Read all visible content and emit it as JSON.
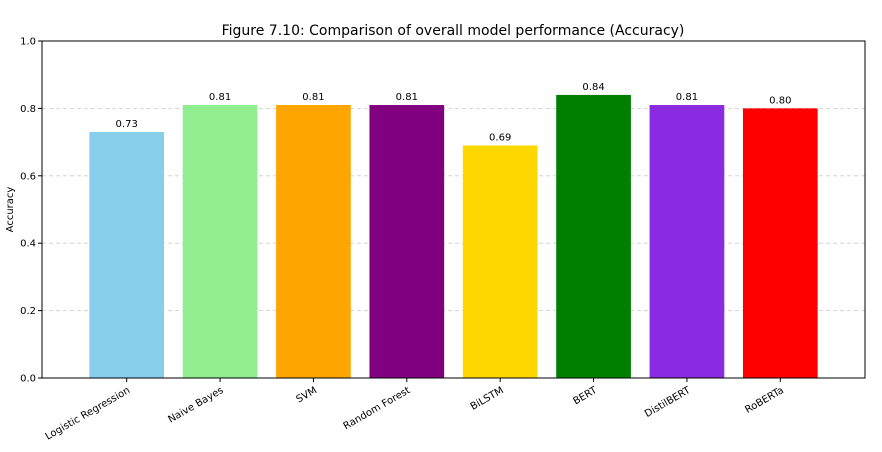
{
  "chart_data": {
    "type": "bar",
    "title": "Figure 7.10: Comparison of overall model performance (Accuracy)",
    "xlabel": "",
    "ylabel": "Accuracy",
    "categories": [
      "Logistic Regression",
      "Naive Bayes",
      "SVM",
      "Random Forest",
      "BiLSTM",
      "BERT",
      "DistilBERT",
      "RoBERTa"
    ],
    "values": [
      0.73,
      0.81,
      0.81,
      0.81,
      0.69,
      0.84,
      0.81,
      0.8
    ],
    "value_labels": [
      "0.73",
      "0.81",
      "0.81",
      "0.81",
      "0.69",
      "0.84",
      "0.81",
      "0.80"
    ],
    "colors": [
      "#87ceeb",
      "#90ee90",
      "#ffa500",
      "#800080",
      "#ffd700",
      "#008000",
      "#8a2be2",
      "#ff0000"
    ],
    "ylim": [
      0,
      1.0
    ],
    "yticks": [
      0.0,
      0.2,
      0.4,
      0.6,
      0.8,
      1.0
    ],
    "ytick_labels": [
      "0.0",
      "0.2",
      "0.4",
      "0.6",
      "0.8",
      "1.0"
    ],
    "grid": "y-dashed",
    "legend": "none"
  }
}
